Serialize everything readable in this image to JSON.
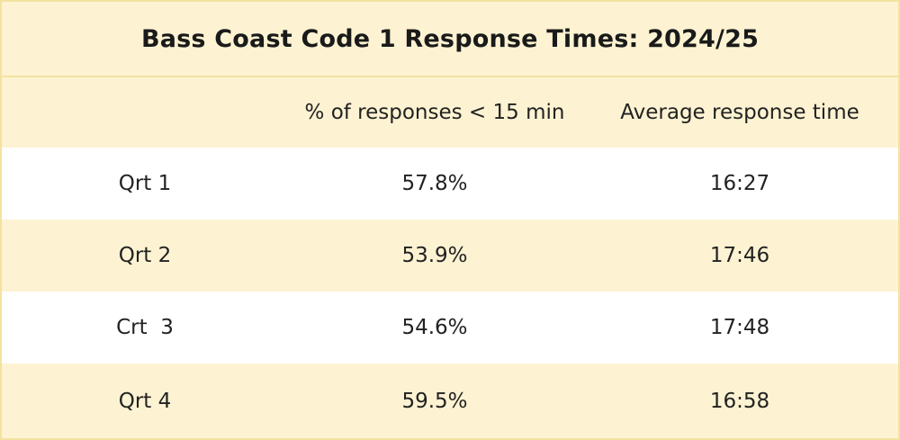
{
  "chart_data": {
    "type": "table",
    "title": "Bass Coast Code 1 Response Times: 2024/25",
    "columns": [
      "",
      "% of responses < 15 min",
      "Average response time"
    ],
    "rows": [
      {
        "label": "Qrt 1",
        "pct_under_15": "57.8%",
        "avg_time": "16:27"
      },
      {
        "label": "Qrt 2",
        "pct_under_15": "53.9%",
        "avg_time": "17:46"
      },
      {
        "label": "Crt  3",
        "pct_under_15": "54.6%",
        "avg_time": "17:48"
      },
      {
        "label": "Qrt 4",
        "pct_under_15": "59.5%",
        "avg_time": "16:58"
      }
    ]
  },
  "colors": {
    "band": "#fdf3d2",
    "border": "#f3e2a0",
    "white": "#ffffff",
    "text": "#222222"
  }
}
